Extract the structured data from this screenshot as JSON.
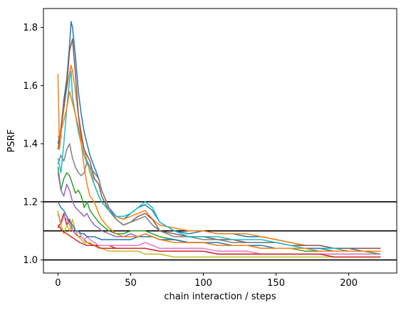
{
  "chart_data": {
    "type": "line",
    "title": "",
    "xlabel": "chain interaction / steps",
    "ylabel": "PSRF",
    "xlim": [
      -10,
      233
    ],
    "ylim": [
      0.955,
      1.865
    ],
    "xticks": [
      0,
      50,
      100,
      150,
      200
    ],
    "yticks": [
      1.0,
      1.2,
      1.4,
      1.6,
      1.8
    ],
    "xtick_labels": [
      "0",
      "50",
      "100",
      "150",
      "200"
    ],
    "ytick_labels": [
      "1.0",
      "1.2",
      "1.4",
      "1.6",
      "1.8"
    ],
    "grid": false,
    "hlines": [
      1.0,
      1.1,
      1.2
    ],
    "hline_color": "#000000",
    "series": [
      {
        "color": "#1f77b4",
        "x": [
          0,
          2,
          4,
          6,
          8,
          9,
          10,
          12,
          14,
          16,
          18,
          20,
          22,
          25,
          28,
          30,
          35,
          40,
          45,
          50,
          55,
          60,
          65,
          70,
          80,
          90,
          100,
          110,
          120,
          130,
          140,
          150,
          160,
          170,
          180,
          190,
          200,
          210,
          222
        ],
        "y": [
          1.4,
          1.45,
          1.55,
          1.62,
          1.74,
          1.82,
          1.8,
          1.7,
          1.58,
          1.5,
          1.44,
          1.4,
          1.36,
          1.32,
          1.28,
          1.24,
          1.18,
          1.15,
          1.14,
          1.16,
          1.18,
          1.19,
          1.17,
          1.13,
          1.1,
          1.09,
          1.1,
          1.09,
          1.09,
          1.08,
          1.08,
          1.07,
          1.06,
          1.05,
          1.05,
          1.04,
          1.04,
          1.03,
          1.03
        ]
      },
      {
        "color": "#ff7f0e",
        "x": [
          0,
          1,
          2,
          3,
          5,
          7,
          9,
          10,
          12,
          14,
          16,
          18,
          20,
          22,
          25,
          28,
          30,
          35,
          40,
          45,
          50,
          55,
          60,
          65,
          70,
          80,
          90,
          100,
          110,
          120,
          130,
          140,
          150,
          160,
          170,
          180,
          190,
          200,
          210,
          222
        ],
        "y": [
          1.64,
          1.38,
          1.42,
          1.5,
          1.56,
          1.62,
          1.67,
          1.65,
          1.58,
          1.5,
          1.44,
          1.38,
          1.34,
          1.3,
          1.26,
          1.22,
          1.2,
          1.17,
          1.15,
          1.14,
          1.15,
          1.16,
          1.17,
          1.14,
          1.12,
          1.11,
          1.1,
          1.1,
          1.09,
          1.09,
          1.09,
          1.08,
          1.07,
          1.06,
          1.05,
          1.05,
          1.04,
          1.04,
          1.04,
          1.04
        ]
      },
      {
        "color": "#2ca02c",
        "x": [
          0,
          2,
          4,
          6,
          8,
          10,
          12,
          14,
          16,
          18,
          20,
          22,
          25,
          28,
          30,
          35,
          40,
          45,
          50,
          55,
          60,
          65,
          70,
          80,
          90,
          100,
          110,
          120,
          130,
          140,
          150,
          160,
          170,
          180,
          190,
          200,
          210,
          222
        ],
        "y": [
          1.32,
          1.24,
          1.28,
          1.3,
          1.29,
          1.26,
          1.23,
          1.24,
          1.22,
          1.18,
          1.2,
          1.17,
          1.15,
          1.13,
          1.12,
          1.1,
          1.09,
          1.09,
          1.1,
          1.1,
          1.1,
          1.09,
          1.08,
          1.07,
          1.06,
          1.06,
          1.05,
          1.05,
          1.05,
          1.04,
          1.04,
          1.04,
          1.03,
          1.03,
          1.03,
          1.03,
          1.03,
          1.02
        ]
      },
      {
        "color": "#d62728",
        "x": [
          0,
          2,
          4,
          6,
          8,
          10,
          12,
          14,
          16,
          18,
          20,
          25,
          30,
          35,
          40,
          45,
          50,
          60,
          70,
          80,
          90,
          100,
          110,
          120,
          130,
          140,
          150,
          160,
          170,
          180,
          190,
          200,
          210,
          222
        ],
        "y": [
          1.11,
          1.13,
          1.16,
          1.12,
          1.14,
          1.1,
          1.09,
          1.08,
          1.08,
          1.07,
          1.06,
          1.05,
          1.05,
          1.05,
          1.04,
          1.04,
          1.04,
          1.04,
          1.03,
          1.03,
          1.03,
          1.03,
          1.02,
          1.02,
          1.02,
          1.02,
          1.02,
          1.02,
          1.02,
          1.02,
          1.02,
          1.02,
          1.02,
          1.02
        ]
      },
      {
        "color": "#9467bd",
        "x": [
          0,
          2,
          4,
          6,
          8,
          10,
          12,
          14,
          16,
          18,
          20,
          22,
          25,
          28,
          30,
          35,
          40,
          45,
          50,
          55,
          60,
          65,
          70,
          80,
          90,
          100,
          110,
          120,
          130,
          140,
          150,
          160,
          170,
          180,
          190,
          200,
          210,
          222
        ],
        "y": [
          1.3,
          1.24,
          1.22,
          1.26,
          1.24,
          1.2,
          1.18,
          1.17,
          1.16,
          1.15,
          1.16,
          1.14,
          1.12,
          1.11,
          1.1,
          1.09,
          1.08,
          1.08,
          1.09,
          1.08,
          1.09,
          1.08,
          1.07,
          1.07,
          1.06,
          1.06,
          1.05,
          1.05,
          1.05,
          1.04,
          1.04,
          1.04,
          1.04,
          1.03,
          1.03,
          1.03,
          1.03,
          1.03
        ]
      },
      {
        "color": "#8c564b",
        "x": [
          0,
          2,
          4,
          6,
          8,
          10,
          12,
          14,
          16,
          18,
          20,
          22,
          25,
          28,
          30,
          35,
          40,
          45,
          50,
          55,
          60,
          65,
          70,
          80,
          90,
          100,
          110,
          120,
          130,
          140,
          150,
          160,
          170,
          180,
          190,
          200,
          210,
          222
        ],
        "y": [
          1.38,
          1.45,
          1.52,
          1.6,
          1.72,
          1.76,
          1.64,
          1.5,
          1.42,
          1.38,
          1.36,
          1.34,
          1.28,
          1.26,
          1.22,
          1.17,
          1.14,
          1.12,
          1.13,
          1.15,
          1.16,
          1.14,
          1.1,
          1.09,
          1.08,
          1.08,
          1.07,
          1.07,
          1.06,
          1.06,
          1.06,
          1.05,
          1.05,
          1.05,
          1.04,
          1.04,
          1.04,
          1.04
        ]
      },
      {
        "color": "#e377c2",
        "x": [
          0,
          2,
          4,
          6,
          8,
          10,
          12,
          14,
          16,
          18,
          20,
          22,
          25,
          28,
          30,
          35,
          40,
          45,
          50,
          55,
          60,
          65,
          70,
          80,
          90,
          100,
          110,
          120,
          130,
          140,
          150,
          160,
          170,
          180,
          190,
          200,
          210,
          222
        ],
        "y": [
          1.16,
          1.12,
          1.15,
          1.14,
          1.12,
          1.1,
          1.09,
          1.1,
          1.08,
          1.07,
          1.08,
          1.07,
          1.06,
          1.05,
          1.05,
          1.05,
          1.05,
          1.05,
          1.05,
          1.05,
          1.06,
          1.05,
          1.04,
          1.04,
          1.04,
          1.04,
          1.03,
          1.03,
          1.03,
          1.02,
          1.02,
          1.02,
          1.02,
          1.02,
          1.02,
          1.02,
          1.02,
          1.02
        ]
      },
      {
        "color": "#7f7f7f",
        "x": [
          0,
          2,
          4,
          6,
          8,
          10,
          12,
          14,
          16,
          18,
          20,
          22,
          25,
          28,
          30,
          35,
          40,
          45,
          50,
          55,
          60,
          65,
          70,
          80,
          90,
          100,
          110,
          120,
          130,
          140,
          150,
          160,
          170,
          180,
          190,
          200,
          210,
          222
        ],
        "y": [
          1.33,
          1.36,
          1.34,
          1.38,
          1.4,
          1.35,
          1.32,
          1.3,
          1.29,
          1.3,
          1.34,
          1.32,
          1.3,
          1.28,
          1.24,
          1.18,
          1.14,
          1.12,
          1.13,
          1.14,
          1.15,
          1.12,
          1.1,
          1.08,
          1.08,
          1.07,
          1.07,
          1.06,
          1.06,
          1.06,
          1.06,
          1.05,
          1.04,
          1.04,
          1.04,
          1.03,
          1.03,
          1.03
        ]
      },
      {
        "color": "#bcbd22",
        "x": [
          0,
          2,
          4,
          6,
          8,
          10,
          12,
          14,
          16,
          18,
          20,
          22,
          25,
          28,
          30,
          35,
          40,
          45,
          50,
          55,
          60,
          65,
          70,
          80,
          90,
          100,
          110,
          120,
          130,
          140,
          150,
          160,
          170,
          180,
          190,
          200,
          210,
          222
        ],
        "y": [
          1.17,
          1.12,
          1.09,
          1.12,
          1.1,
          1.14,
          1.1,
          1.08,
          1.07,
          1.06,
          1.06,
          1.06,
          1.05,
          1.04,
          1.04,
          1.03,
          1.03,
          1.03,
          1.03,
          1.03,
          1.02,
          1.02,
          1.02,
          1.01,
          1.01,
          1.01,
          1.01,
          1.01,
          1.01,
          1.01,
          1.01,
          1.01,
          1.01,
          1.01,
          1.01,
          1.01,
          1.01,
          1.01
        ]
      },
      {
        "color": "#17becf",
        "x": [
          0,
          2,
          4,
          6,
          8,
          9,
          10,
          12,
          14,
          16,
          18,
          20,
          22,
          25,
          28,
          30,
          35,
          40,
          45,
          50,
          55,
          60,
          65,
          70,
          80,
          90,
          100,
          110,
          120,
          130,
          140,
          150,
          160,
          170,
          180,
          190,
          200,
          210,
          222
        ],
        "y": [
          1.35,
          1.3,
          1.4,
          1.52,
          1.62,
          1.65,
          1.56,
          1.5,
          1.44,
          1.4,
          1.36,
          1.33,
          1.32,
          1.26,
          1.22,
          1.2,
          1.17,
          1.15,
          1.15,
          1.16,
          1.18,
          1.2,
          1.18,
          1.13,
          1.1,
          1.08,
          1.08,
          1.08,
          1.07,
          1.07,
          1.07,
          1.06,
          1.05,
          1.04,
          1.04,
          1.04,
          1.03,
          1.03,
          1.03
        ]
      },
      {
        "color": "#1f77b4",
        "x": [
          0,
          2,
          4,
          6,
          8,
          10,
          12,
          14,
          16,
          18,
          20,
          25,
          30,
          35,
          40,
          45,
          50,
          55,
          60,
          65,
          70,
          80,
          90,
          100,
          110,
          120,
          130,
          140,
          150,
          160,
          170,
          180,
          190,
          200,
          210,
          222
        ],
        "y": [
          1.2,
          1.18,
          1.17,
          1.15,
          1.13,
          1.12,
          1.1,
          1.1,
          1.09,
          1.09,
          1.08,
          1.08,
          1.07,
          1.07,
          1.07,
          1.07,
          1.07,
          1.08,
          1.08,
          1.08,
          1.07,
          1.07,
          1.06,
          1.06,
          1.06,
          1.05,
          1.05,
          1.05,
          1.04,
          1.04,
          1.04,
          1.04,
          1.03,
          1.03,
          1.03,
          1.03
        ]
      },
      {
        "color": "#ff7f0e",
        "x": [
          0,
          2,
          4,
          6,
          8,
          10,
          12,
          14,
          16,
          18,
          20,
          22,
          25,
          28,
          30,
          35,
          40,
          45,
          50,
          55,
          60,
          65,
          70,
          80,
          90,
          100,
          110,
          120,
          130,
          140,
          150,
          160,
          170,
          180,
          190,
          200,
          210,
          222
        ],
        "y": [
          1.42,
          1.44,
          1.48,
          1.52,
          1.58,
          1.54,
          1.5,
          1.46,
          1.4,
          1.32,
          1.26,
          1.22,
          1.2,
          1.16,
          1.14,
          1.11,
          1.09,
          1.08,
          1.08,
          1.08,
          1.09,
          1.08,
          1.07,
          1.06,
          1.06,
          1.06,
          1.05,
          1.05,
          1.05,
          1.04,
          1.04,
          1.04,
          1.04,
          1.03,
          1.03,
          1.03,
          1.03,
          1.03
        ]
      },
      {
        "color": "#d62728",
        "x": [
          0,
          3,
          6,
          9,
          12,
          15,
          20,
          25,
          30,
          40,
          50,
          60,
          70,
          80,
          90,
          100,
          110,
          120,
          130,
          140,
          150,
          160,
          170,
          180,
          190,
          200,
          210,
          222
        ],
        "y": [
          1.12,
          1.1,
          1.09,
          1.08,
          1.07,
          1.06,
          1.05,
          1.05,
          1.04,
          1.04,
          1.04,
          1.04,
          1.03,
          1.03,
          1.03,
          1.03,
          1.02,
          1.02,
          1.02,
          1.02,
          1.02,
          1.02,
          1.02,
          1.02,
          1.01,
          1.01,
          1.01,
          1.01
        ]
      }
    ]
  }
}
